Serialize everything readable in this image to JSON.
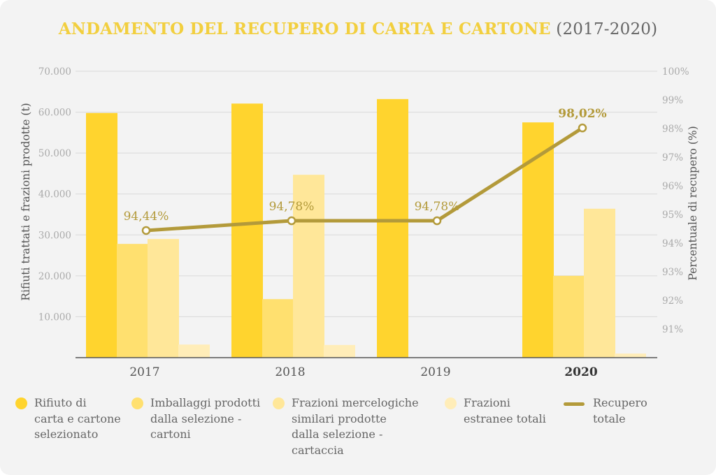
{
  "title": "ANDAMENTO DEL RECUPERO DI CARTA E CARTONE",
  "title_years": "(2017-2020)",
  "colors": {
    "background": "#f3f3f3",
    "title": "#f2cf3f",
    "text": "#666666",
    "axis_line": "#555555",
    "grid": "#d9d9d9"
  },
  "chart_data": {
    "type": "bar",
    "categories": [
      "2017",
      "2018",
      "2019",
      "2020"
    ],
    "highlighted_category": "2020",
    "ylabel": "Rifiuti trattati e frazioni prodotte (t)",
    "ylim": [
      0,
      70000
    ],
    "yticks": [
      "10.000",
      "20.000",
      "30.000",
      "40.000",
      "50.000",
      "60.000",
      "70.000"
    ],
    "y2label": "Percentuale di recupero (%)",
    "y2lim": [
      90,
      100
    ],
    "y2ticks": [
      "91%",
      "92%",
      "93%",
      "94%",
      "95%",
      "96%",
      "97%",
      "98%",
      "99%",
      "100%"
    ],
    "grid": true,
    "legend_position": "bottom",
    "series": [
      {
        "name": "Rifiuto di\ncarta e cartone\nselezionato",
        "color": "#ffd42e",
        "values": [
          59800,
          62100,
          63200,
          57500
        ]
      },
      {
        "name": "Imballaggi prodotti\ndalla selezione -\ncartoni",
        "color": "#ffe06f",
        "values": [
          27800,
          14300,
          null,
          20000
        ]
      },
      {
        "name": "Frazioni mercelogiche\nsimilari prodotte\ndalla selezione -\ncartaccia",
        "color": "#ffe799",
        "values": [
          29000,
          44700,
          null,
          36400
        ]
      },
      {
        "name": "Frazioni\nestranee totali",
        "color": "#ffedb8",
        "values": [
          3200,
          3100,
          null,
          1000
        ]
      }
    ],
    "line_series": {
      "name": "Recupero\ntotale",
      "color": "#b39a3a",
      "axis": "right",
      "values": [
        94.44,
        94.78,
        94.78,
        98.02
      ],
      "labels": [
        "94,44%",
        "94,78%",
        "94,78%",
        "98,02%"
      ],
      "bold_label_index": 3
    }
  }
}
